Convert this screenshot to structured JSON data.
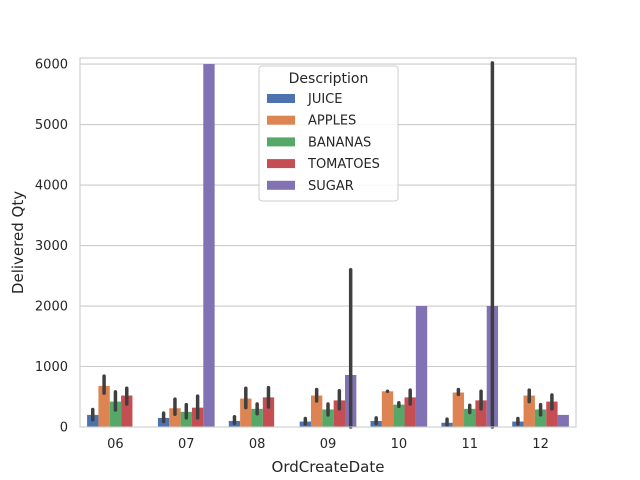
{
  "chart_data": {
    "type": "bar",
    "xlabel": "OrdCreateDate",
    "ylabel": "Delivered Qty",
    "categories": [
      "06",
      "07",
      "08",
      "09",
      "10",
      "11",
      "12"
    ],
    "ylim": [
      0,
      6100
    ],
    "yticks": [
      0,
      1000,
      2000,
      3000,
      4000,
      5000,
      6000
    ],
    "grid": true,
    "legend": {
      "title": "Description",
      "placement": "top-center"
    },
    "series": [
      {
        "name": "JUICE",
        "color": "#4c72b0",
        "values": [
          200,
          150,
          100,
          90,
          100,
          70,
          90
        ],
        "ci": [
          [
            120,
            290
          ],
          [
            90,
            230
          ],
          [
            60,
            170
          ],
          [
            50,
            140
          ],
          [
            60,
            150
          ],
          [
            30,
            130
          ],
          [
            50,
            140
          ]
        ]
      },
      {
        "name": "APPLES",
        "color": "#dd8452",
        "values": [
          680,
          310,
          470,
          520,
          590,
          570,
          520
        ],
        "ci": [
          [
            560,
            840
          ],
          [
            210,
            460
          ],
          [
            320,
            640
          ],
          [
            430,
            620
          ],
          [
            590,
            590
          ],
          [
            540,
            620
          ],
          [
            420,
            610
          ]
        ]
      },
      {
        "name": "BANANAS",
        "color": "#55a868",
        "values": [
          420,
          250,
          300,
          290,
          370,
          300,
          290
        ],
        "ci": [
          [
            280,
            580
          ],
          [
            150,
            370
          ],
          [
            220,
            380
          ],
          [
            200,
            380
          ],
          [
            340,
            400
          ],
          [
            240,
            360
          ],
          [
            200,
            370
          ]
        ]
      },
      {
        "name": "TOMATOES",
        "color": "#c44e52",
        "values": [
          520,
          320,
          490,
          440,
          490,
          440,
          420
        ],
        "ci": [
          [
            380,
            640
          ],
          [
            150,
            510
          ],
          [
            330,
            650
          ],
          [
            300,
            600
          ],
          [
            380,
            610
          ],
          [
            300,
            590
          ],
          [
            300,
            530
          ]
        ]
      },
      {
        "name": "SUGAR",
        "color": "#8172b3",
        "values": [
          null,
          6000,
          null,
          860,
          2000,
          2000,
          200
        ],
        "ci": [
          null,
          null,
          null,
          [
            0,
            2600
          ],
          null,
          [
            0,
            6020
          ],
          null
        ]
      }
    ]
  }
}
